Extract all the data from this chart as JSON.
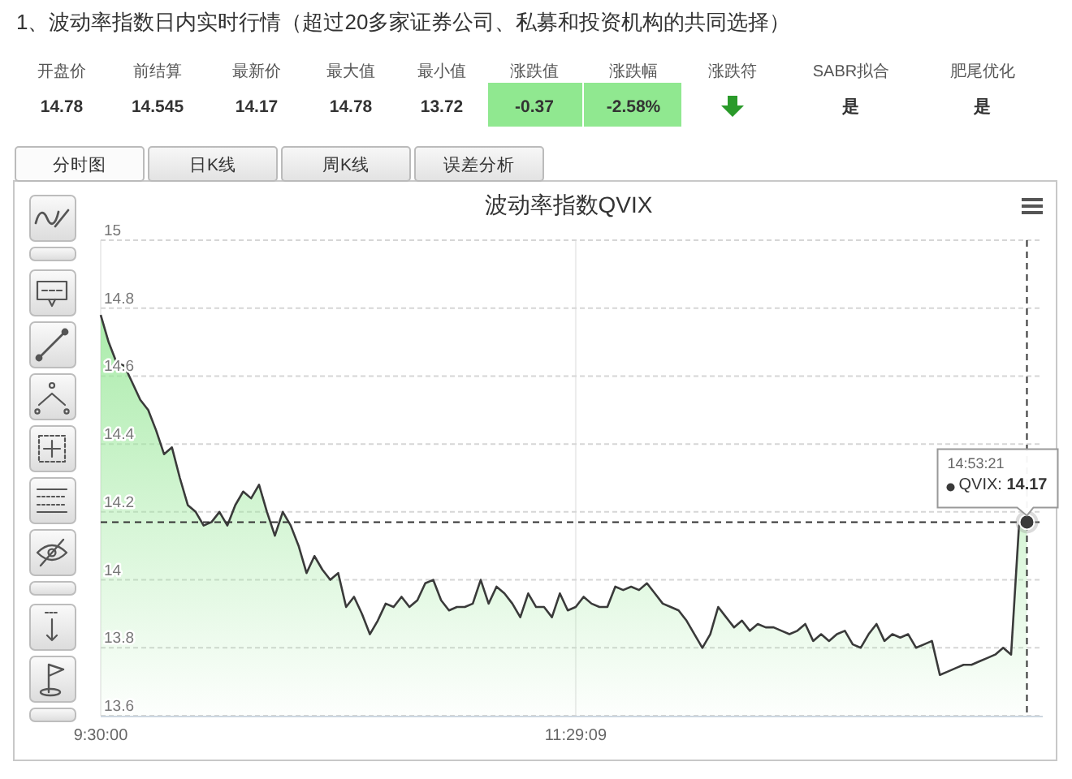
{
  "chart_data": [
    {
      "type": "other",
      "title": "1、波动率指数日内实时行情（超过20多家证券公司、私募和投资机构的共同选择）",
      "categories": [
        "开盘价",
        "前结算",
        "最新价",
        "最大值",
        "最小值",
        "涨跌值",
        "涨跌幅",
        "涨跌符",
        "SABR拟合",
        "肥尾优化"
      ],
      "value_labels": [
        "14.78",
        "14.545",
        "14.17",
        "14.78",
        "13.72",
        "-0.37",
        "-2.58%",
        null,
        "是",
        "是"
      ],
      "colors": [
        null,
        null,
        null,
        null,
        null,
        "#90e890",
        "#90e890",
        null,
        null,
        null
      ],
      "annotations": [
        "分时图",
        "日K线",
        "周K线",
        "误差分析"
      ]
    },
    {
      "type": "area",
      "title": "波动率指数QVIX",
      "categories": [
        "9:30:00",
        null,
        null,
        null,
        null,
        null,
        null,
        null,
        null,
        null,
        null,
        null,
        null,
        null,
        null,
        null,
        null,
        null,
        null,
        null,
        null,
        null,
        null,
        null,
        null,
        null,
        null,
        null,
        null,
        null,
        null,
        null,
        null,
        null,
        null,
        null,
        null,
        null,
        null,
        null,
        null,
        null,
        null,
        null,
        null,
        null,
        null,
        null,
        null,
        null,
        null,
        null,
        null,
        null,
        null,
        null,
        null,
        null,
        null,
        null,
        "11:29:09",
        null,
        null,
        null,
        null,
        null,
        null,
        null,
        null,
        null,
        null,
        null,
        null,
        null,
        null,
        null,
        null,
        null,
        null,
        null,
        null,
        null,
        null,
        null,
        null,
        null,
        null,
        null,
        null,
        null,
        null,
        null,
        null,
        null,
        null,
        null,
        null,
        null,
        null,
        null,
        null,
        null,
        null,
        null,
        null,
        null,
        null,
        null,
        null,
        null,
        null,
        null,
        null,
        null,
        null,
        null,
        null,
        null,
        null,
        null
      ],
      "series": [
        {
          "color": "#9be89b",
          "values": [
            14.78,
            14.7,
            14.64,
            14.63,
            14.58,
            14.53,
            14.5,
            14.44,
            14.37,
            14.39,
            14.3,
            14.22,
            14.2,
            14.16,
            14.17,
            14.2,
            14.16,
            14.22,
            14.26,
            14.24,
            14.28,
            14.2,
            14.13,
            14.2,
            14.16,
            14.1,
            14.02,
            14.07,
            14.03,
            14.0,
            14.02,
            13.92,
            13.95,
            13.9,
            13.84,
            13.88,
            13.93,
            13.92,
            13.95,
            13.92,
            13.94,
            13.99,
            14.0,
            13.94,
            13.91,
            13.92,
            13.92,
            13.93,
            14.0,
            13.93,
            13.98,
            13.96,
            13.93,
            13.89,
            13.96,
            13.92,
            13.92,
            13.89,
            13.96,
            13.91,
            13.92,
            13.95,
            13.93,
            13.92,
            13.92,
            13.98,
            13.97,
            13.98,
            13.97,
            13.99,
            13.96,
            13.93,
            13.92,
            13.91,
            13.88,
            13.84,
            13.8,
            13.84,
            13.92,
            13.89,
            13.86,
            13.88,
            13.85,
            13.87,
            13.86,
            13.86,
            13.85,
            13.84,
            13.85,
            13.87,
            13.82,
            13.84,
            13.82,
            13.84,
            13.85,
            13.81,
            13.8,
            13.84,
            13.87,
            13.82,
            13.84,
            13.83,
            13.84,
            13.8,
            13.81,
            13.82,
            13.72,
            13.73,
            13.74,
            13.75,
            13.75,
            13.76,
            13.77,
            13.78,
            13.8,
            13.78,
            14.16,
            14.17,
            null,
            null
          ]
        }
      ],
      "ylim": [
        13.6,
        15
      ],
      "yticks": [
        13.6,
        13.8,
        14,
        14.2,
        14.4,
        14.6,
        14.8,
        15
      ],
      "grid": true,
      "ref_lines": [
        {
          "axis": "y",
          "value": 14.17,
          "color": "#333333",
          "line_style": "dashed"
        }
      ],
      "annotations": [
        {
          "text": "14:53:21\nQVIX: 14.17",
          "y": 14.17
        }
      ]
    }
  ]
}
